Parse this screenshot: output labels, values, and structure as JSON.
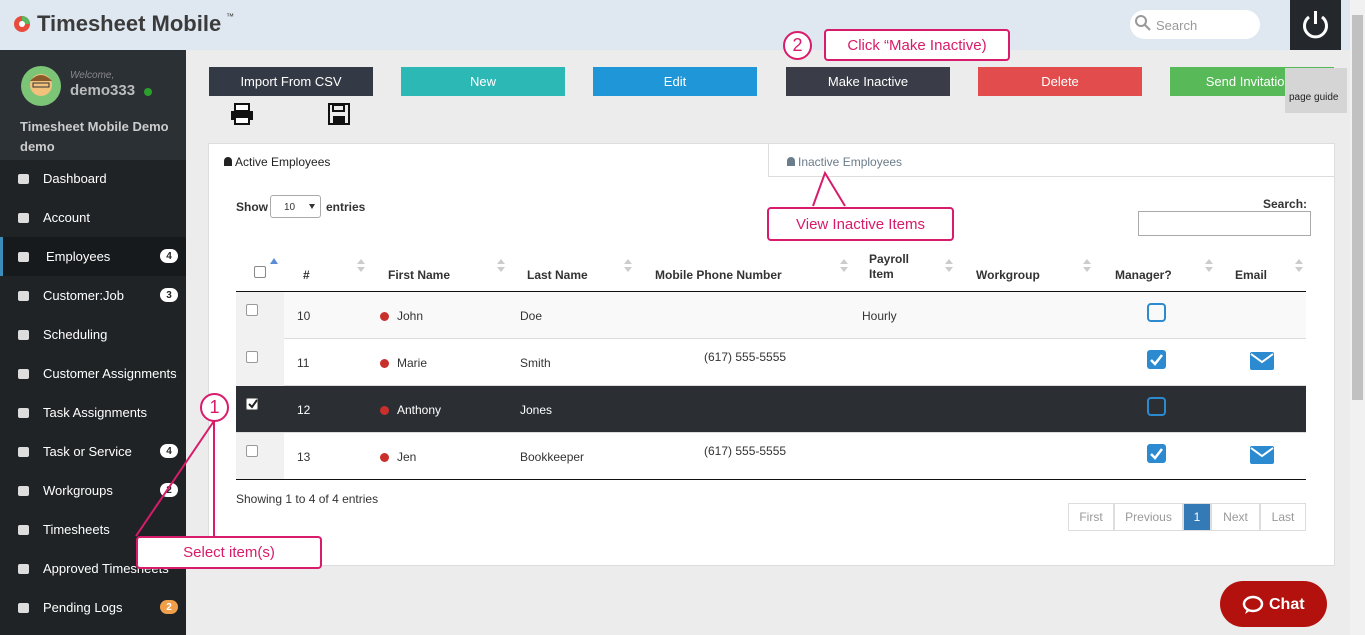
{
  "header": {
    "logo": "Timesheet Mobile",
    "trademark": "™",
    "search_placeholder": "Search"
  },
  "user": {
    "welcome": "Welcome,",
    "name": "demo333",
    "company": "Timesheet Mobile Demo",
    "account": "demo"
  },
  "nav": [
    {
      "label": "Dashboard"
    },
    {
      "label": "Account"
    },
    {
      "label": "Employees",
      "badge": 4,
      "active": true
    },
    {
      "label": "Customer:Job",
      "badge": 3
    },
    {
      "label": "Scheduling"
    },
    {
      "label": "Customer Assignments"
    },
    {
      "label": "Task Assignments"
    },
    {
      "label": "Task or Service",
      "badge": 4
    },
    {
      "label": "Workgroups",
      "badge": 2
    },
    {
      "label": "Timesheets"
    },
    {
      "label": "Approved Timesheets"
    },
    {
      "label": "Pending Logs",
      "badge": 2,
      "badge_color": "#f0a04b"
    }
  ],
  "toolbar": [
    {
      "label": "Import From CSV",
      "color": "#343a45"
    },
    {
      "label": "New",
      "color": "#2cb8b4"
    },
    {
      "label": "Edit",
      "color": "#1f96d8"
    },
    {
      "label": "Make Inactive",
      "color": "#3a3d47"
    },
    {
      "label": "Delete",
      "color": "#e24c4c"
    },
    {
      "label": "Send Invitations",
      "color": "#57b957"
    }
  ],
  "page_guide": "page guide",
  "tabs": [
    "Active Employees",
    "Inactive Employees"
  ],
  "table_controls": {
    "show": "Show",
    "entries_value": "10",
    "entries": "entries",
    "search": "Search:"
  },
  "table": {
    "columns": [
      "#",
      "First Name",
      "Last Name",
      "Mobile Phone Number",
      "Payroll Item",
      "Workgroup",
      "Manager?",
      "Email"
    ],
    "rows": [
      {
        "id": "10",
        "first": "John",
        "last": "Doe",
        "payroll": "Hourly",
        "manager": false,
        "email": false,
        "selected": false
      },
      {
        "id": "11",
        "first": "Marie",
        "last": "Smith",
        "phone": "(617) 555-5555",
        "manager": true,
        "email": true,
        "selected": false
      },
      {
        "id": "12",
        "first": "Anthony",
        "last": "Jones",
        "manager": false,
        "email": false,
        "selected": true
      },
      {
        "id": "13",
        "first": "Jen",
        "last": "Bookkeeper",
        "phone": "(617) 555-5555",
        "manager": true,
        "email": true,
        "selected": false
      }
    ]
  },
  "info": "Showing 1 to 4 of 4 entries",
  "pagination": [
    "First",
    "Previous",
    "1",
    "Next",
    "Last"
  ],
  "annotations": [
    {
      "number": "1",
      "text": "Select item(s)"
    },
    {
      "number": "2",
      "text": "Click “Make Inactive)"
    },
    {
      "text": "View Inactive Items"
    }
  ],
  "chat": "Chat"
}
